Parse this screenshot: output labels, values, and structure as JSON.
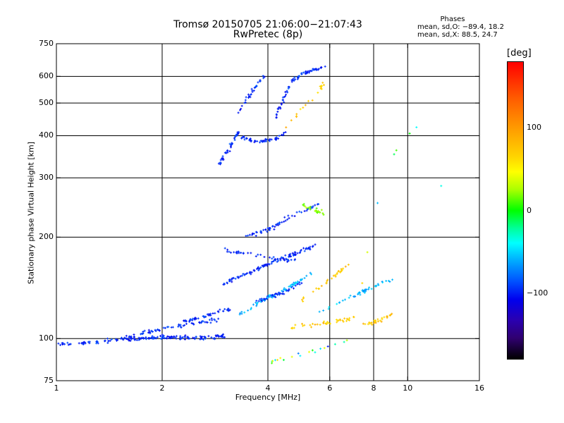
{
  "chart_data": {
    "type": "scatter",
    "title": "Tromsø 20150705 21:06:00−21:07:43",
    "subtitle": "RwPretec (8p)",
    "xlabel": "Frequency [MHz]",
    "ylabel": "Stationary phase Virtual Height [km]",
    "x_scale": "log",
    "y_scale": "log",
    "xlim": [
      1,
      16
    ],
    "ylim": [
      75,
      750
    ],
    "x_ticks": [
      1,
      2,
      4,
      6,
      8,
      10,
      16
    ],
    "x_tick_labels": [
      "1",
      "2",
      "4",
      "6",
      "8",
      "10",
      "16"
    ],
    "x_grid": [
      2,
      4,
      6,
      8,
      10
    ],
    "y_ticks": [
      75,
      100,
      200,
      300,
      400,
      500,
      600,
      750
    ],
    "y_tick_labels": [
      "75",
      "100",
      "200",
      "300",
      "400",
      "500",
      "600",
      "750"
    ],
    "y_grid": [
      100,
      200,
      300,
      400,
      500,
      600
    ],
    "grid": true,
    "phases_header": "Phases",
    "phase_o": "mean, sd,O: −89.4, 18.2",
    "phase_x": "mean, sd,X:  88.5, 24.7",
    "colorbar": {
      "label": "[deg]",
      "range": [
        -180,
        180
      ],
      "ticks": [
        100,
        0,
        -100
      ],
      "tick_labels": [
        "100",
        "0",
        "−100"
      ]
    },
    "series": [
      {
        "phase": -90,
        "spread": 18,
        "segments": [
          {
            "x": [
              1.0,
              1.2,
              1.45,
              1.7,
              2.0,
              2.2,
              2.5,
              2.8,
              3.0
            ],
            "y": [
              96,
              97,
              99,
              100,
              101,
              101,
              100,
              101,
              102
            ],
            "n": 170
          },
          {
            "x": [
              1.55,
              1.8,
              2.0,
              2.3,
              2.6,
              2.9
            ],
            "y": [
              100,
              104,
              107,
              110,
              112,
              114
            ],
            "n": 70
          },
          {
            "x": [
              2.3,
              2.6,
              2.9,
              3.2
            ],
            "y": [
              112,
              116,
              120,
              124
            ],
            "n": 45
          },
          {
            "x": [
              3.0,
              3.3,
              3.6,
              3.9,
              4.2,
              4.6,
              5.0,
              5.5
            ],
            "y": [
              145,
              152,
              158,
              164,
              170,
              176,
              182,
              190
            ],
            "n": 110
          },
          {
            "x": [
              3.0,
              3.3,
              3.6,
              4.0,
              4.4,
              4.8
            ],
            "y": [
              183,
              180,
              178,
              175,
              172,
              170
            ],
            "n": 40
          },
          {
            "x": [
              3.4,
              3.7,
              4.0,
              4.3,
              4.7,
              5.2,
              5.6
            ],
            "y": [
              200,
              205,
              210,
              220,
              232,
              242,
              250
            ],
            "n": 60
          },
          {
            "x": [
              3.7,
              4.0,
              4.3,
              4.6,
              5.0
            ],
            "y": [
              128,
              132,
              136,
              140,
              148
            ],
            "n": 60
          },
          {
            "x": [
              2.9,
              3.0,
              3.1,
              3.2,
              3.35
            ],
            "y": [
              330,
              345,
              365,
              390,
              420
            ],
            "n": 40
          },
          {
            "x": [
              3.35,
              3.6,
              3.9,
              4.2,
              4.5
            ],
            "y": [
              395,
              388,
              385,
              390,
              410
            ],
            "n": 55
          },
          {
            "x": [
              4.2,
              4.45,
              4.7,
              5.0,
              5.4,
              5.8
            ],
            "y": [
              450,
              520,
              580,
              610,
              630,
              640
            ],
            "n": 70
          },
          {
            "x": [
              3.3,
              3.5,
              3.7,
              3.9
            ],
            "y": [
              470,
              520,
              560,
              600
            ],
            "n": 30
          }
        ]
      },
      {
        "phase": -55,
        "spread": 20,
        "segments": [
          {
            "x": [
              3.3,
              3.6,
              4.0,
              4.5,
              5.0,
              5.5
            ],
            "y": [
              118,
              124,
              132,
              140,
              150,
              160
            ],
            "n": 50
          },
          {
            "x": [
              5.6,
              6.2,
              6.8,
              7.5,
              8.2,
              9.0
            ],
            "y": [
              120,
              126,
              132,
              138,
              144,
              150
            ],
            "n": 45
          }
        ]
      },
      {
        "phase": 88,
        "spread": 24,
        "segments": [
          {
            "x": [
              4.5,
              5.0,
              5.5,
              6.0,
              6.5,
              7.0
            ],
            "y": [
              107,
              109,
              110,
              112,
              113,
              115
            ],
            "n": 40
          },
          {
            "x": [
              7.5,
              8.0,
              8.5,
              9.0
            ],
            "y": [
              110,
              112,
              114,
              118
            ],
            "n": 30
          },
          {
            "x": [
              5.0,
              5.5,
              6.0,
              6.5,
              7.0
            ],
            "y": [
              130,
              140,
              150,
              160,
              170
            ],
            "n": 30
          },
          {
            "x": [
              4.5,
              5.0,
              5.5,
              5.8
            ],
            "y": [
              420,
              480,
              530,
              580
            ],
            "n": 20
          }
        ]
      },
      {
        "phase": 20,
        "spread": 15,
        "segments": [
          {
            "x": [
              4.9,
              5.2,
              5.5,
              5.8
            ],
            "y": [
              250,
              245,
              240,
              235
            ],
            "n": 25
          }
        ]
      },
      {
        "phase": 0,
        "spread": 120,
        "segments": [
          {
            "x": [
              4.0,
              5.0,
              6.0,
              7.0,
              8.5,
              10.5,
              13.5
            ],
            "y": [
              85,
              90,
              95,
              100,
              320,
              430,
              230
            ],
            "n": 28
          }
        ]
      }
    ]
  }
}
